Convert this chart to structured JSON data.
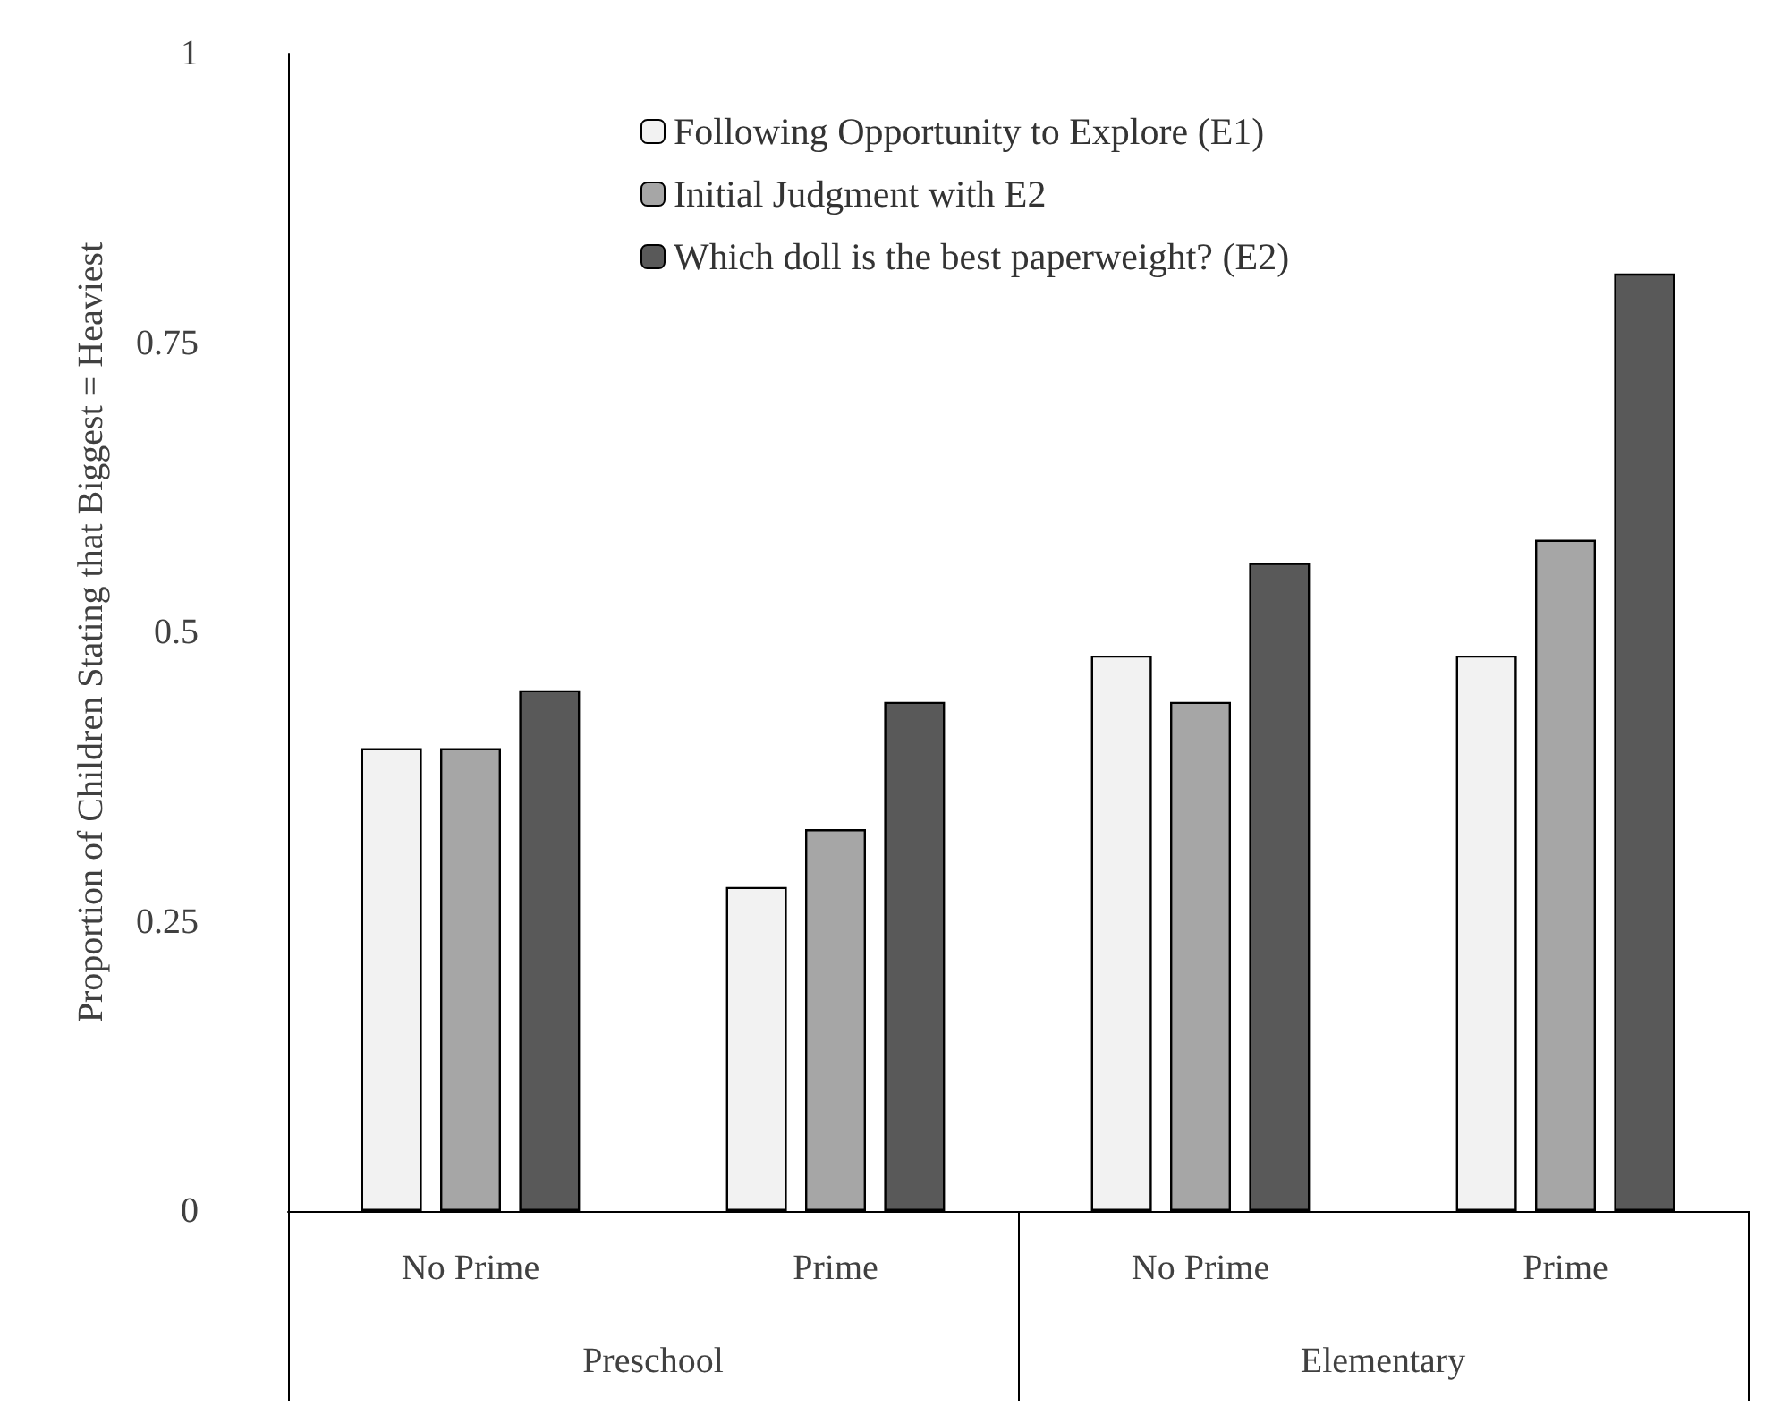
{
  "chart_data": {
    "type": "bar",
    "ylabel": "Proportion of Children Stating that Biggest = Heaviest",
    "categories": [
      "No Prime",
      "Prime",
      "No Prime",
      "Prime"
    ],
    "annotations": [
      "Preschool",
      "Elementary"
    ],
    "ylim": [
      0,
      1
    ],
    "yticks": [
      0,
      0.25,
      0.5,
      0.75,
      1
    ],
    "grid": false,
    "legend": "top",
    "series": [
      {
        "name": "Following Opportunity to Explore (E1)",
        "color": "#f2f2f2",
        "values": [
          0.4,
          0.28,
          0.48,
          0.48
        ]
      },
      {
        "name": "Initial Judgment with E2",
        "color": "#a6a6a6",
        "values": [
          0.4,
          0.33,
          0.44,
          0.58
        ]
      },
      {
        "name": "Which doll is the best paperweight? (E2)",
        "color": "#595959",
        "values": [
          0.45,
          0.44,
          0.56,
          0.81
        ]
      }
    ]
  }
}
